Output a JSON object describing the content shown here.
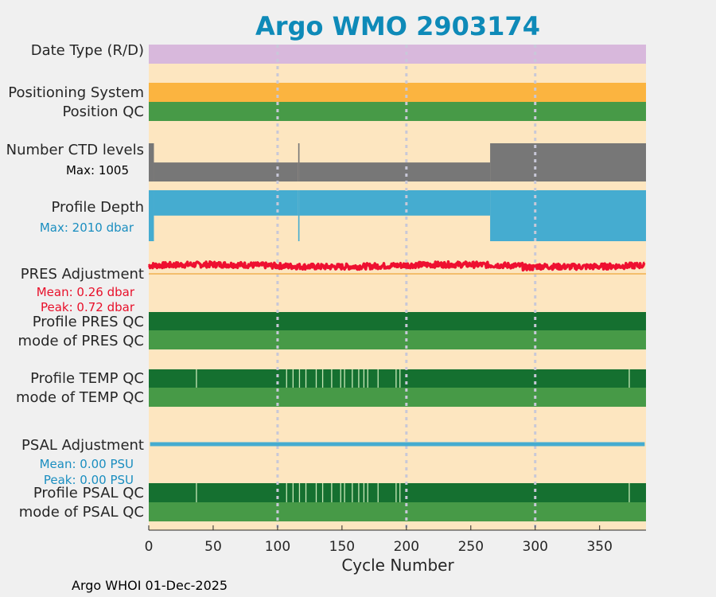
{
  "chart_data": {
    "type": "timeline",
    "title": "Argo WMO 2903174",
    "xlabel": "Cycle Number",
    "xlim": [
      0,
      386
    ],
    "xticks": [
      0,
      50,
      100,
      150,
      200,
      250,
      300,
      350
    ],
    "xtick_labels": [
      "0",
      "50",
      "100",
      "150",
      "200",
      "250",
      "300",
      "350"
    ],
    "gridlines_x": [
      100,
      200,
      300
    ],
    "footer": "Argo WHOI 01-Dec-2025",
    "colors": {
      "title": "#0e8ab8",
      "panel_bg": "#fde6c0",
      "date_type": "#d8b8dc",
      "positioning": "#fbb440",
      "qc_good_light": "#479a47",
      "qc_good_dark": "#157030",
      "qc_gap": "#c9e8b8",
      "ctd": "#777777",
      "depth": "#45acd0",
      "pres_adj": "#ee1030",
      "pres_zero": "#f0b050",
      "psal_adj": "#45acd0",
      "blue_text": "#1a8ec0",
      "red_text": "#e8102a",
      "grid": "#c8c8d8"
    },
    "rows": {
      "date_type": {
        "label": "Date Type (R/D)",
        "value": "R",
        "cycles": [
          0,
          386
        ]
      },
      "positioning_system": {
        "label": "Positioning System",
        "cycles": [
          0,
          386
        ]
      },
      "position_qc": {
        "label": "Position QC",
        "cycles": [
          0,
          386
        ]
      },
      "ctd_levels": {
        "label": "Number CTD levels",
        "max_label": "Max: 1005",
        "max": 1005,
        "segments": [
          {
            "from": 0,
            "to": 4,
            "value": 1005
          },
          {
            "from": 4,
            "to": 116,
            "value": 500
          },
          {
            "from": 116,
            "to": 117,
            "value": 1005
          },
          {
            "from": 117,
            "to": 265,
            "value": 500
          },
          {
            "from": 265,
            "to": 386,
            "value": 1005
          }
        ]
      },
      "profile_depth": {
        "label": "Profile Depth",
        "max_label": "Max: 2010 dbar",
        "max": 2010,
        "segments": [
          {
            "from": 0,
            "to": 4,
            "value": 2010
          },
          {
            "from": 4,
            "to": 116,
            "value": 1000
          },
          {
            "from": 116,
            "to": 117,
            "value": 2010
          },
          {
            "from": 117,
            "to": 265,
            "value": 1000
          },
          {
            "from": 265,
            "to": 386,
            "value": 2010
          }
        ]
      },
      "pres_adjustment": {
        "label": "PRES Adjustment",
        "mean_label": "Mean: 0.26 dbar",
        "peak_label": "Peak: 0.72 dbar",
        "mean": 0.26,
        "peak": 0.72
      },
      "profile_pres_qc": {
        "label": "Profile PRES QC",
        "cycles": [
          0,
          386
        ]
      },
      "mode_pres_qc": {
        "label": "mode of PRES QC",
        "cycles": [
          0,
          386
        ]
      },
      "profile_temp_qc": {
        "label": "Profile TEMP QC",
        "gap_cycles": [
          37,
          107,
          112,
          117,
          122,
          130,
          135,
          142,
          149,
          152,
          158,
          163,
          167,
          170,
          178,
          192,
          195,
          373
        ]
      },
      "mode_temp_qc": {
        "label": "mode of TEMP QC",
        "cycles": [
          0,
          386
        ]
      },
      "psal_adjustment": {
        "label": "PSAL Adjustment",
        "mean_label": "Mean: 0.00 PSU",
        "peak_label": "Peak: 0.00 PSU",
        "mean": 0.0,
        "peak": 0.0
      },
      "profile_psal_qc": {
        "label": "Profile PSAL QC",
        "gap_cycles": [
          37,
          107,
          112,
          117,
          122,
          130,
          135,
          142,
          149,
          152,
          158,
          163,
          167,
          170,
          178,
          192,
          195,
          373
        ]
      },
      "mode_psal_qc": {
        "label": "mode of PSAL QC",
        "cycles": [
          0,
          386
        ]
      }
    }
  }
}
